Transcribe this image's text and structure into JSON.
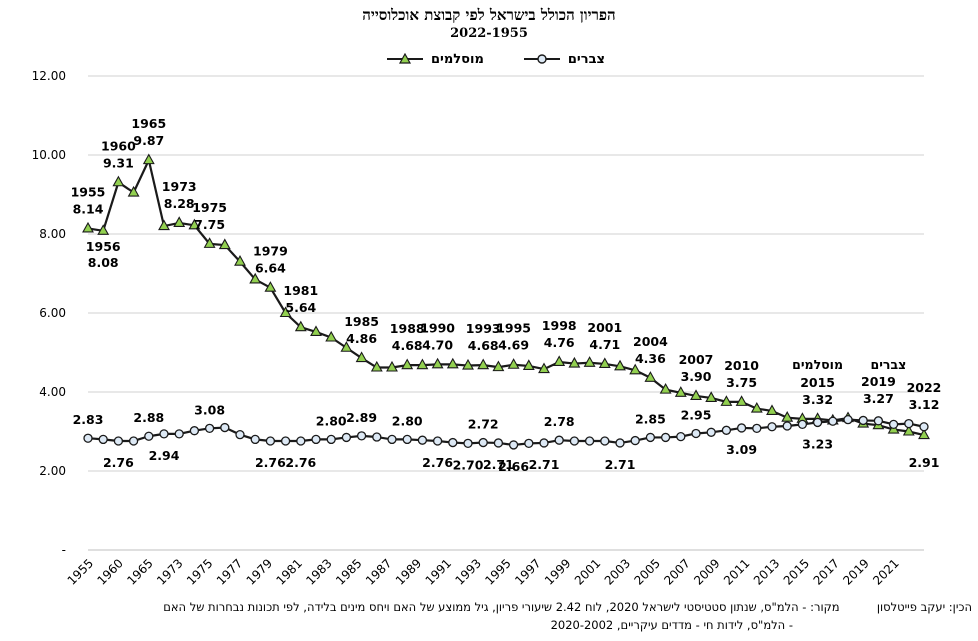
{
  "header": {
    "title": "הפריון הכולל בישראל לפי קבוצת אוכלוסייה",
    "subtitle": "2022-1955"
  },
  "legend": {
    "muslims": "מוסלמים",
    "jews": "צברים"
  },
  "footer": {
    "credit": "הכין: יעקב פייטלסון",
    "source_line1": "מקור: - הלמ\"ס, שנתון סטטיסטי לישראל 2020, לוח 2.42 שיעורי פריון, גיל ממוצע של האם ויחס מינים בלידה, לפי תכונות נבחרות של האם",
    "source_line2": "- הלמ\"ס, לידות חי - מדדים עיקריים, 2020-2002"
  },
  "colors": {
    "muslims_fill": "#92d050",
    "jews_fill": "#dde9f5",
    "line": "#1a1a1a",
    "grid": "#d0d0d0"
  },
  "chart_data": {
    "type": "line",
    "title": "הפריון הכולל בישראל לפי קבוצת אוכלוסייה",
    "subtitle": "2022-1955",
    "x_tick_labels": [
      "1955",
      "1960",
      "1965",
      "1973",
      "1975",
      "1977",
      "1979",
      "1981",
      "1983",
      "1985",
      "1987",
      "1989",
      "1991",
      "1993",
      "1995",
      "1997",
      "1999",
      "2001",
      "2003",
      "2005",
      "2007",
      "2009",
      "2011",
      "2013",
      "2015",
      "2017",
      "2019",
      "2021"
    ],
    "y_tick_labels": [
      "-",
      "2.00",
      "4.00",
      "6.00",
      "8.00",
      "10.00",
      "12.00"
    ],
    "ylim": [
      0,
      12
    ],
    "grid": true,
    "legend_position": "top",
    "x": [
      "1955",
      "1956",
      "1960",
      "1963",
      "1965",
      "1970",
      "1973",
      "1974",
      "1975",
      "1976",
      "1977",
      "1978",
      "1979",
      "1980",
      "1981",
      "1982",
      "1983",
      "1984",
      "1985",
      "1986",
      "1987",
      "1988",
      "1989",
      "1990",
      "1991",
      "1992",
      "1993",
      "1994",
      "1995",
      "1996",
      "1997",
      "1998",
      "1999",
      "2000",
      "2001",
      "2002",
      "2003",
      "2004",
      "2005",
      "2006",
      "2007",
      "2008",
      "2009",
      "2010",
      "2011",
      "2012",
      "2013",
      "2014",
      "2015",
      "2016",
      "2017",
      "2018",
      "2019",
      "2020",
      "2021",
      "2022"
    ],
    "series": [
      {
        "name": "מוסלמים",
        "marker": "triangle",
        "values": [
          8.14,
          8.08,
          9.31,
          9.05,
          9.87,
          8.2,
          8.28,
          8.22,
          7.75,
          7.72,
          7.3,
          6.85,
          6.64,
          6.0,
          5.64,
          5.52,
          5.38,
          5.12,
          4.86,
          4.62,
          4.62,
          4.68,
          4.68,
          4.7,
          4.7,
          4.67,
          4.68,
          4.63,
          4.69,
          4.66,
          4.58,
          4.76,
          4.72,
          4.74,
          4.71,
          4.65,
          4.55,
          4.36,
          4.06,
          3.98,
          3.9,
          3.85,
          3.75,
          3.75,
          3.58,
          3.52,
          3.35,
          3.32,
          3.32,
          3.28,
          3.34,
          3.2,
          3.16,
          3.05,
          3.0,
          2.91
        ]
      },
      {
        "name": "צברים",
        "marker": "circle",
        "values": [
          2.83,
          2.8,
          2.76,
          2.76,
          2.88,
          2.94,
          2.94,
          3.02,
          3.08,
          3.1,
          2.92,
          2.8,
          2.76,
          2.76,
          2.76,
          2.8,
          2.8,
          2.85,
          2.89,
          2.86,
          2.8,
          2.8,
          2.78,
          2.76,
          2.72,
          2.7,
          2.72,
          2.71,
          2.66,
          2.7,
          2.71,
          2.78,
          2.76,
          2.76,
          2.76,
          2.71,
          2.77,
          2.85,
          2.85,
          2.87,
          2.95,
          2.98,
          3.03,
          3.09,
          3.08,
          3.12,
          3.14,
          3.18,
          3.23,
          3.26,
          3.3,
          3.28,
          3.27,
          3.18,
          3.2,
          3.12
        ]
      }
    ],
    "annotations": [
      {
        "series": "מוסלמים",
        "year": "1955",
        "value": "8.14"
      },
      {
        "series": "מוסלמים",
        "year": "1956",
        "value": "8.08"
      },
      {
        "series": "מוסלמים",
        "year": "1960",
        "value": "9.31"
      },
      {
        "series": "מוסלמים",
        "year": "1965",
        "value": "9.87"
      },
      {
        "series": "מוסלמים",
        "year": "1973",
        "value": "8.28"
      },
      {
        "series": "מוסלמים",
        "year": "1975",
        "value": "7.75"
      },
      {
        "series": "מוסלמים",
        "year": "1979",
        "value": "6.64"
      },
      {
        "series": "מוסלמים",
        "year": "1981",
        "value": "5.64"
      },
      {
        "series": "מוסלמים",
        "year": "1985",
        "value": "4.86"
      },
      {
        "series": "מוסלמים",
        "year": "1988",
        "value": "4.68"
      },
      {
        "series": "מוסלמים",
        "year": "1990",
        "value": "4.70"
      },
      {
        "series": "מוסלמים",
        "year": "1993",
        "value": "4.68"
      },
      {
        "series": "מוסלמים",
        "year": "1995",
        "value": "4.69"
      },
      {
        "series": "מוסלמים",
        "year": "1998",
        "value": "4.76"
      },
      {
        "series": "מוסלמים",
        "year": "2001",
        "value": "4.71"
      },
      {
        "series": "מוסלמים",
        "year": "2004",
        "value": "4.36"
      },
      {
        "series": "מוסלמים",
        "year": "2007",
        "value": "3.90"
      },
      {
        "series": "מוסלמים",
        "year": "2010",
        "value": "3.75"
      },
      {
        "series": "מוסלמים",
        "year": "2015",
        "value": "3.32"
      },
      {
        "series": "מוסלמים",
        "year": "2022",
        "value": "2.91"
      },
      {
        "series": "צברים",
        "year": "1955",
        "value": "2.83"
      },
      {
        "series": "צברים",
        "year": "1960",
        "value": "2.76"
      },
      {
        "series": "צברים",
        "year": "1965",
        "value": "2.88"
      },
      {
        "series": "צברים",
        "year": "1970",
        "value": "2.94"
      },
      {
        "series": "צברים",
        "year": "1975",
        "value": "3.08"
      },
      {
        "series": "צברים",
        "year": "1979",
        "value": "2.76"
      },
      {
        "series": "צברים",
        "year": "1981",
        "value": "2.76"
      },
      {
        "series": "צברים",
        "year": "1983",
        "value": "2.80"
      },
      {
        "series": "צברים",
        "year": "1985",
        "value": "2.89"
      },
      {
        "series": "צברים",
        "year": "1988",
        "value": "2.80"
      },
      {
        "series": "צברים",
        "year": "1990",
        "value": "2.76"
      },
      {
        "series": "צברים",
        "year": "1992",
        "value": "2.70"
      },
      {
        "series": "צברים",
        "year": "1993",
        "value": "2.72"
      },
      {
        "series": "צברים",
        "year": "1994",
        "value": "2.71"
      },
      {
        "series": "צברים",
        "year": "1995",
        "value": "2.66"
      },
      {
        "series": "צברים",
        "year": "1997",
        "value": "2.71"
      },
      {
        "series": "צברים",
        "year": "1998",
        "value": "2.78"
      },
      {
        "series": "צברים",
        "year": "2002",
        "value": "2.71"
      },
      {
        "series": "צברים",
        "year": "2004",
        "value": "2.85"
      },
      {
        "series": "צברים",
        "year": "2007",
        "value": "2.95"
      },
      {
        "series": "צברים",
        "year": "2010",
        "value": "3.09"
      },
      {
        "series": "צברים",
        "year": "2015",
        "value": "3.23"
      },
      {
        "series": "צברים",
        "year": "2019",
        "value": "3.27"
      },
      {
        "series": "צברים",
        "year": "2022",
        "value": "3.12"
      }
    ],
    "group_labels": [
      {
        "text": "מוסלמים",
        "year": "2015"
      },
      {
        "text": "צברים",
        "year": "2019"
      }
    ],
    "year_labels": [
      {
        "series": "מוסלמים",
        "year": "1955",
        "text": "1955"
      },
      {
        "series": "מוסלמים",
        "year": "1956",
        "text": "1956"
      },
      {
        "series": "מוסלמים",
        "year": "1960",
        "text": "1960"
      },
      {
        "series": "מוסלמים",
        "year": "1965",
        "text": "1965"
      },
      {
        "series": "מוסלמים",
        "year": "1973",
        "text": "1973"
      },
      {
        "series": "מוסלמים",
        "year": "1975",
        "text": "1975"
      },
      {
        "series": "מוסלמים",
        "year": "1979",
        "text": "1979"
      },
      {
        "series": "מוסלמים",
        "year": "1981",
        "text": "1981"
      },
      {
        "series": "מוסלמים",
        "year": "1985",
        "text": "1985"
      },
      {
        "series": "מוסלמים",
        "year": "1988",
        "text": "1988"
      },
      {
        "series": "מוסלמים",
        "year": "1990",
        "text": "1990"
      },
      {
        "series": "מוסלמים",
        "year": "1993",
        "text": "1993"
      },
      {
        "series": "מוסלמים",
        "year": "1995",
        "text": "1995"
      },
      {
        "series": "מוסלמים",
        "year": "1998",
        "text": "1998"
      },
      {
        "series": "מוסלמים",
        "year": "2001",
        "text": "2001"
      },
      {
        "series": "מוסלמים",
        "year": "2004",
        "text": "2004"
      },
      {
        "series": "מוסלמים",
        "year": "2007",
        "text": "2007"
      },
      {
        "series": "מוסלמים",
        "year": "2010",
        "text": "2010"
      },
      {
        "series": "מוסלמים",
        "year": "2015",
        "text": "2015"
      },
      {
        "series": "צברים",
        "year": "2019",
        "text": "2019"
      },
      {
        "series": "צברים",
        "year": "2022",
        "text": "2022"
      }
    ]
  }
}
